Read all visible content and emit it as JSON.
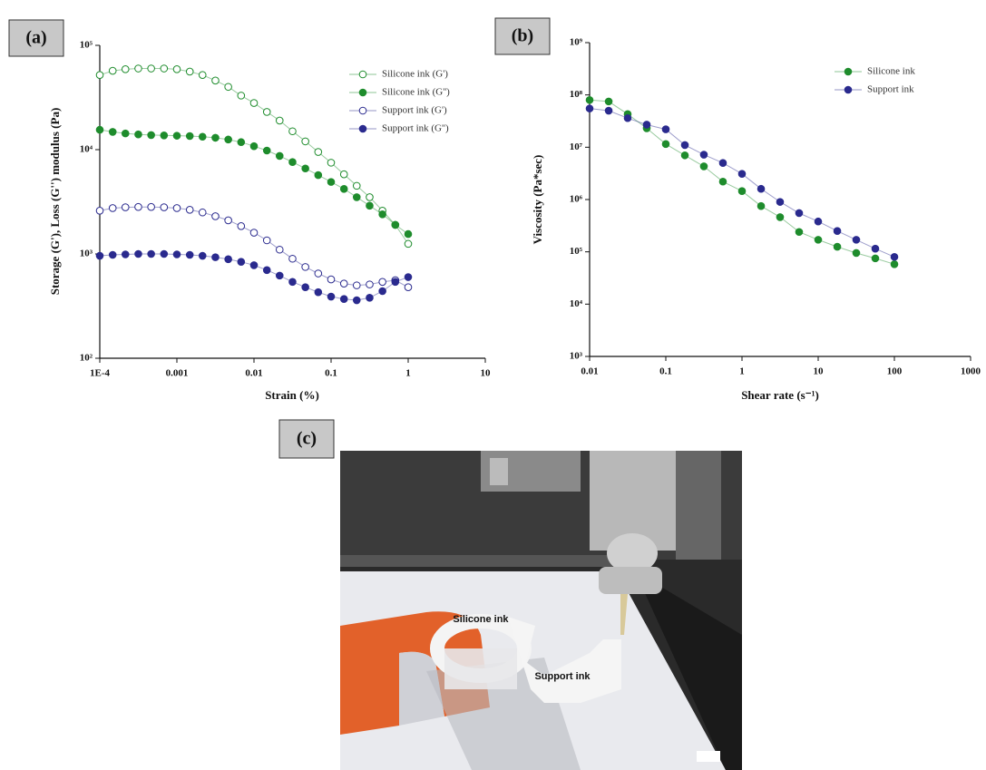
{
  "panels": [
    "(a)",
    "(b)",
    "(c)"
  ],
  "chart_data": [
    {
      "type": "scatter-line",
      "xlabel": "Strain (%)",
      "ylabel": "Storage (G'), Loss (G'') modulus (Pa)",
      "xscale": "log",
      "yscale": "log",
      "legend": "upper right",
      "xlim": [
        0.0001,
        10
      ],
      "ylim": [
        100,
        100000
      ],
      "xticks": [
        {
          "value": 0.0001,
          "label": "1E-4"
        },
        0.001,
        0.01,
        0.1,
        1,
        10
      ],
      "yticks": [
        {
          "value": 100,
          "label": "10²"
        },
        {
          "value": 1000,
          "label": "10³"
        },
        {
          "value": 10000,
          "label": "10⁴"
        },
        {
          "value": 100000,
          "label": "10⁵"
        }
      ],
      "x": [
        0.0001,
        0.000147,
        0.000215,
        0.000316,
        0.000464,
        0.000681,
        0.001,
        0.00147,
        0.00215,
        0.00316,
        0.00464,
        0.00681,
        0.01,
        0.0147,
        0.0215,
        0.0316,
        0.0464,
        0.0681,
        0.1,
        0.147,
        0.215,
        0.316,
        0.464,
        0.681,
        1
      ],
      "series": [
        {
          "name": "Silicone ink (G')",
          "color": "#1e8c2c",
          "marker": "open",
          "values": [
            52000,
            57000,
            59000,
            60000,
            60000,
            60000,
            59000,
            56000,
            52000,
            46000,
            40000,
            33000,
            28000,
            23000,
            19000,
            15000,
            12000,
            9500,
            7500,
            5800,
            4500,
            3500,
            2600,
            1900,
            1250
          ]
        },
        {
          "name": "Silicone ink (G'')",
          "color": "#1e8c2c",
          "marker": "filled",
          "values": [
            15500,
            14800,
            14300,
            14000,
            13800,
            13700,
            13600,
            13500,
            13300,
            13000,
            12500,
            11800,
            10800,
            9800,
            8700,
            7600,
            6600,
            5700,
            4900,
            4200,
            3500,
            2900,
            2400,
            1900,
            1550
          ]
        },
        {
          "name": "Support ink (G')",
          "color": "#2a2a8e",
          "marker": "open",
          "values": [
            2600,
            2750,
            2800,
            2820,
            2820,
            2800,
            2750,
            2650,
            2500,
            2300,
            2100,
            1850,
            1600,
            1350,
            1100,
            900,
            750,
            650,
            570,
            520,
            500,
            510,
            540,
            560,
            480
          ]
        },
        {
          "name": "Support ink (G'')",
          "color": "#2a2a8e",
          "marker": "filled",
          "values": [
            960,
            980,
            990,
            1000,
            1000,
            1000,
            990,
            980,
            960,
            930,
            890,
            840,
            780,
            700,
            620,
            540,
            480,
            430,
            390,
            370,
            360,
            380,
            440,
            540,
            600
          ]
        }
      ]
    },
    {
      "type": "scatter-line",
      "xlabel": "Shear rate (s⁻¹)",
      "ylabel": "Viscosity (Pa*sec)",
      "xscale": "log",
      "yscale": "log",
      "legend": "upper right",
      "xlim": [
        0.01,
        1000
      ],
      "ylim": [
        1000,
        1000000000
      ],
      "xticks": [
        0.01,
        0.1,
        1,
        10,
        100,
        1000
      ],
      "yticks": [
        {
          "value": 1000,
          "label": "10³"
        },
        {
          "value": 10000,
          "label": "10⁴"
        },
        {
          "value": 100000,
          "label": "10⁵"
        },
        {
          "value": 1000000,
          "label": "10⁶"
        },
        {
          "value": 10000000,
          "label": "10⁷"
        },
        {
          "value": 100000000,
          "label": "10⁸"
        },
        {
          "value": 1000000000,
          "label": "10⁹"
        }
      ],
      "x": [
        0.01,
        0.0178,
        0.0316,
        0.0562,
        0.1,
        0.178,
        0.316,
        0.562,
        1,
        1.78,
        3.16,
        5.62,
        10,
        17.8,
        31.6,
        56.2,
        100
      ],
      "series": [
        {
          "name": "Silicone ink",
          "color": "#1e8c2c",
          "marker": "filled",
          "values": [
            80000000,
            75000000,
            43000000,
            23000000,
            11500000,
            7000000,
            4300000,
            2200000,
            1450000,
            750000,
            460000,
            240000,
            170000,
            125000,
            95000,
            75000,
            58000
          ]
        },
        {
          "name": "Support ink",
          "color": "#2a2a8e",
          "marker": "filled",
          "values": [
            55000000,
            50000000,
            36000000,
            27000000,
            22000000,
            11000000,
            7200000,
            5000000,
            3100000,
            1600000,
            900000,
            550000,
            380000,
            250000,
            170000,
            115000,
            80000
          ]
        }
      ]
    }
  ],
  "photo": {
    "labels": [
      "Silicone ink",
      "Support ink"
    ]
  }
}
